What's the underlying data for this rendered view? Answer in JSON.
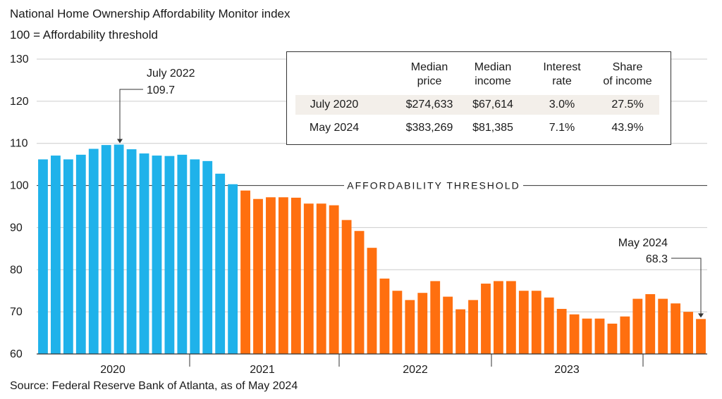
{
  "title": "National Home Ownership Affordability Monitor index",
  "subtitle": "100 = Affordability threshold",
  "source": "Source: Federal Reserve Bank of Atlanta, as of May 2024",
  "colors": {
    "before": "#1fb2ea",
    "after": "#ff6f0f",
    "grid": "#cccccc",
    "axis": "#333333"
  },
  "chart_data": {
    "type": "bar",
    "ylim": [
      60,
      130
    ],
    "yticks": [
      "130",
      "120",
      "110",
      "100",
      "90",
      "80",
      "70",
      "60"
    ],
    "ytick_values": [
      130,
      120,
      110,
      100,
      90,
      80,
      70,
      60
    ],
    "year_labels": [
      "2020",
      "2021",
      "2022",
      "2023"
    ],
    "threshold_label": "AFFORDABILITY THRESHOLD",
    "threshold_value": 100,
    "annotations": [
      {
        "label": "July 2022",
        "value": "109.7"
      },
      {
        "label": "May 2024",
        "value": "68.3"
      }
    ],
    "series": [
      {
        "color_key": "before",
        "values": [
          106.2,
          107.1,
          106.2,
          107.3,
          108.7,
          109.6,
          109.7,
          108.6,
          107.6,
          107.1,
          107.0,
          107.3,
          106.2,
          105.8,
          102.8,
          100.3
        ]
      },
      {
        "color_key": "after",
        "values": [
          98.8,
          96.8,
          97.2,
          97.2,
          97.1,
          95.7,
          95.7,
          95.3,
          91.8,
          89.2,
          85.2,
          77.9,
          75.0,
          72.8,
          74.5,
          77.3,
          73.6,
          70.6,
          72.8,
          76.7,
          77.3,
          77.3,
          75.0,
          75.0,
          73.4,
          70.7,
          69.4,
          68.4,
          68.4,
          67.2,
          68.9,
          73.1,
          74.2,
          73.1,
          72.0,
          70.0,
          68.3
        ]
      }
    ]
  },
  "table": {
    "headers": [
      [
        "Median",
        "price"
      ],
      [
        "Median",
        "income"
      ],
      [
        "Interest",
        "rate"
      ],
      [
        "Share",
        "of income"
      ]
    ],
    "rows": [
      {
        "label": "July 2020",
        "values": [
          "$274,633",
          "$67,614",
          "3.0%",
          "27.5%"
        ]
      },
      {
        "label": "May 2024",
        "values": [
          "$383,269",
          "$81,385",
          "7.1%",
          "43.9%"
        ]
      }
    ]
  }
}
